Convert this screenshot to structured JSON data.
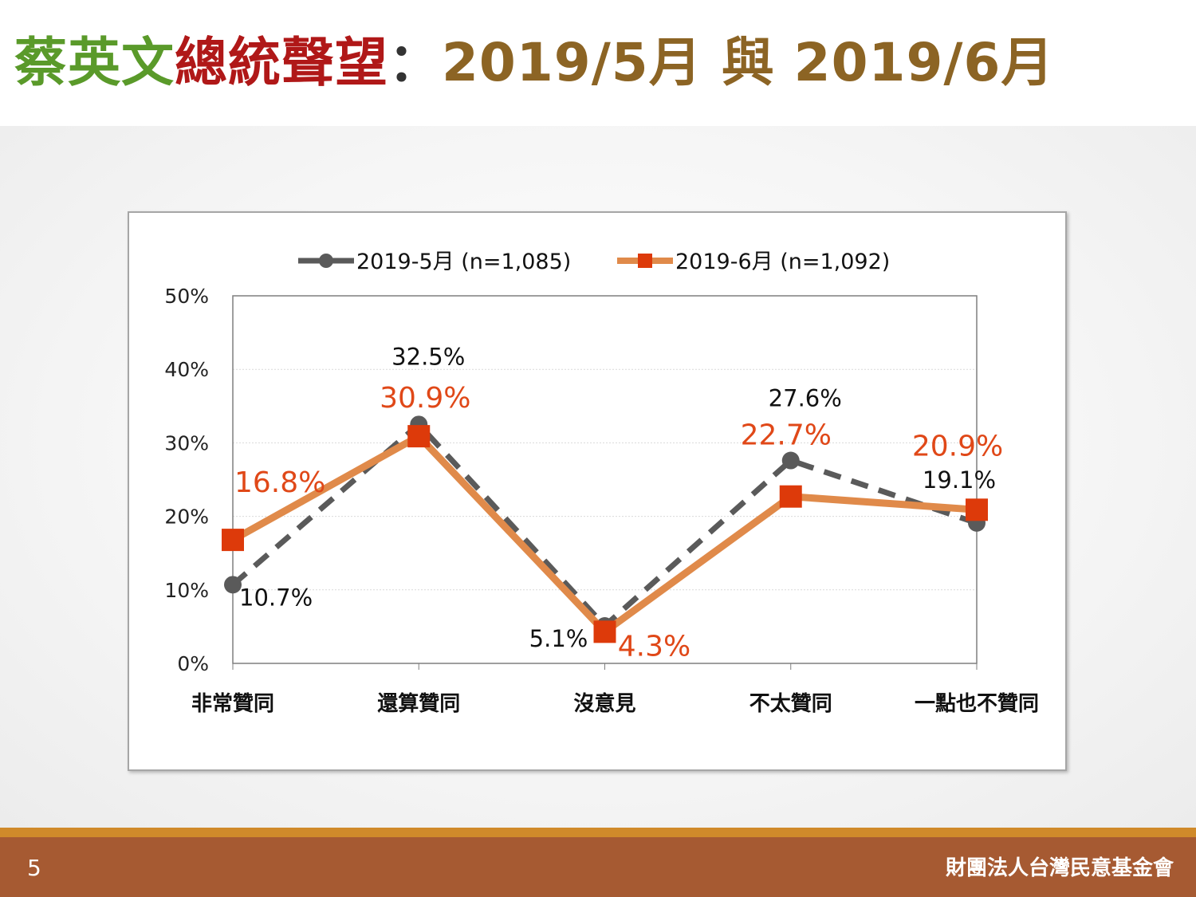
{
  "title": {
    "part1": "蔡英文",
    "part2": "總統聲望",
    "part3": "：",
    "part4": "2019/5月 與 2019/6月"
  },
  "footer": {
    "page_number": "5",
    "organization": "財團法人台灣民意基金會"
  },
  "colors": {
    "title_green": "#5a9a2a",
    "title_red": "#b01818",
    "title_brown": "#8c6424",
    "series_may": "#5a5a5a",
    "series_june_line": "#e08a4a",
    "series_june_marker": "#dd3a0a",
    "label_june": "#e04818",
    "footer_bg": "#a65a32",
    "footer_line": "#d08a2a"
  },
  "chart_data": {
    "type": "line",
    "categories": [
      "非常贊同",
      "還算贊同",
      "沒意見",
      "不太贊同",
      "一點也不贊同"
    ],
    "series": [
      {
        "name": "2019-5月 (n=1,085)",
        "values": [
          10.7,
          32.5,
          5.1,
          27.6,
          19.1
        ],
        "labels": [
          "10.7%",
          "32.5%",
          "5.1%",
          "27.6%",
          "19.1%"
        ],
        "style": "dashed",
        "marker": "circle"
      },
      {
        "name": "2019-6月 (n=1,092)",
        "values": [
          16.8,
          30.9,
          4.3,
          22.7,
          20.9
        ],
        "labels": [
          "16.8%",
          "30.9%",
          "4.3%",
          "22.7%",
          "20.9%"
        ],
        "style": "solid",
        "marker": "square"
      }
    ],
    "yticks": [
      "0%",
      "10%",
      "20%",
      "30%",
      "40%",
      "50%"
    ],
    "ylim": [
      0,
      50
    ],
    "grid": true,
    "legend": "top-center"
  }
}
